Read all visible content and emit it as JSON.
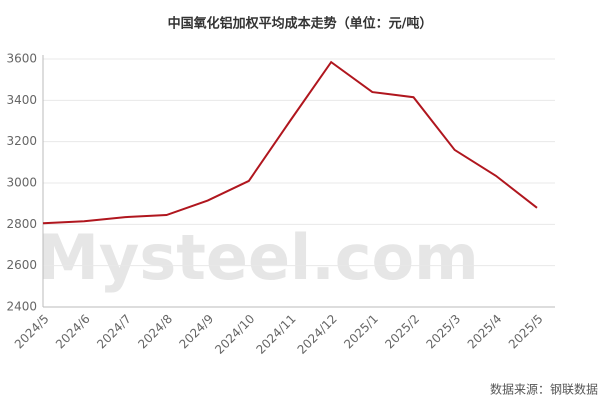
{
  "chart_data": {
    "type": "line",
    "title": "中国氧化铝加权平均成本走势（单位：元/吨）",
    "categories": [
      "2024/5",
      "2024/6",
      "2024/7",
      "2024/8",
      "2024/9",
      "2024/10",
      "2024/11",
      "2024/12",
      "2025/1",
      "2025/2",
      "2025/3",
      "2025/4",
      "2025/5"
    ],
    "series": [
      {
        "name": "加权平均成本",
        "color": "#b0161e",
        "values": [
          2805,
          2815,
          2835,
          2845,
          2915,
          3010,
          3300,
          3585,
          3440,
          3415,
          3160,
          3035,
          2880
        ]
      }
    ],
    "ylim": [
      2400,
      3600
    ],
    "yticks": [
      2400,
      2600,
      2800,
      3000,
      3200,
      3400,
      3600
    ],
    "grid": true,
    "source": "数据来源：钢联数据",
    "watermark": "Mysteel.com"
  }
}
